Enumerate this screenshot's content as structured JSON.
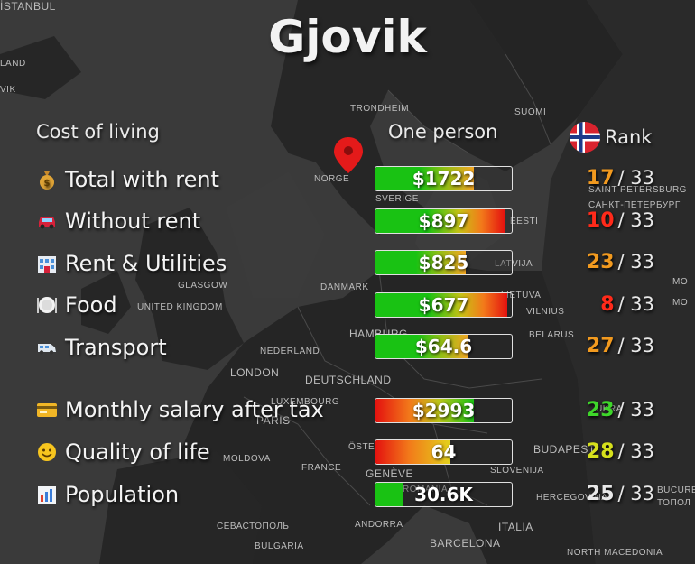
{
  "title": "Gjovik",
  "headers": {
    "col1": "Cost of living",
    "col2": "One person",
    "col3": "Rank"
  },
  "rows": [
    {
      "emoji": "money-bag-icon",
      "label": "Total with rent",
      "value": "$1722",
      "fill": 0.72,
      "gradient": "green-orange",
      "rank": "17",
      "rank_color": "#f29a1f",
      "rank_total": "/ 33"
    },
    {
      "emoji": "car-icon",
      "label": "Without rent",
      "value": "$897",
      "fill": 0.95,
      "gradient": "green-red",
      "rank": "10",
      "rank_color": "#ff2a1a",
      "rank_total": "/ 33"
    },
    {
      "emoji": "hotel-icon",
      "label": "Rent & Utilities",
      "value": "$825",
      "fill": 0.66,
      "gradient": "green-orange",
      "rank": "23",
      "rank_color": "#f29a1f",
      "rank_total": "/ 33"
    },
    {
      "emoji": "plate-icon",
      "label": "Food",
      "value": "$677",
      "fill": 0.97,
      "gradient": "green-red",
      "rank": "8",
      "rank_color": "#ff2a1a",
      "rank_total": "/ 33"
    },
    {
      "emoji": "van-icon",
      "label": "Transport",
      "value": "$64.6",
      "fill": 0.68,
      "gradient": "green-orange",
      "rank": "27",
      "rank_color": "#f29a1f",
      "rank_total": "/ 33"
    },
    {
      "emoji": "card-icon",
      "label": "Monthly salary after tax",
      "value": "$2993",
      "fill": 0.72,
      "gradient": "red-green",
      "rank": "23",
      "rank_color": "#3ed62a",
      "rank_total": "/ 33"
    },
    {
      "emoji": "smile-icon",
      "label": "Quality of life",
      "value": "64",
      "fill": 0.55,
      "gradient": "red-yellow",
      "rank": "28",
      "rank_color": "#d6e01c",
      "rank_total": "/ 33"
    },
    {
      "emoji": "chart-icon",
      "label": "Population",
      "value": "30.6K",
      "fill": 0.2,
      "gradient": "green",
      "rank": "25",
      "rank_color": "#e8e8e8",
      "rank_total": "/ 33"
    }
  ],
  "map_labels": [
    "LAND",
    "VIK",
    "TRONDHEIM",
    "SUOMI",
    "NORGE",
    "SAINT PETERSBURG",
    "САНКТ-ПЕТЕРБУРГ",
    "SVERIGE",
    "EESTI",
    "LATVIJA",
    "GLASGOW",
    "DANMARK",
    "UNITED KINGDOM",
    "LIETUVA",
    "VILNIUS",
    "MO",
    "MO",
    "HAMBURG",
    "BELARUS",
    "NEDERLAND",
    "LONDON",
    "DEUTSCHLAND",
    "LUXEMBOURG",
    "PARIS",
    "UKRA",
    "ÖSTERREICH",
    "BUDAPEST",
    "MOLDOVA",
    "FRANCE",
    "GENÈVE",
    "SLOVENIJA",
    "ROMANIA",
    "HERCEGOVINA",
    "BUCUREȘTI",
    "ТОПОЛ",
    "СЕВАСТОПОЛЬ",
    "ANDORRA",
    "ITALIA",
    "BULGARIA",
    "BARCELONA",
    "NORTH MACEDONIA",
    "İSTANBUL"
  ],
  "colors": {
    "green": "#19c213",
    "orange": "#f5a623",
    "red": "#e4120f",
    "yellow": "#e3d21b"
  }
}
